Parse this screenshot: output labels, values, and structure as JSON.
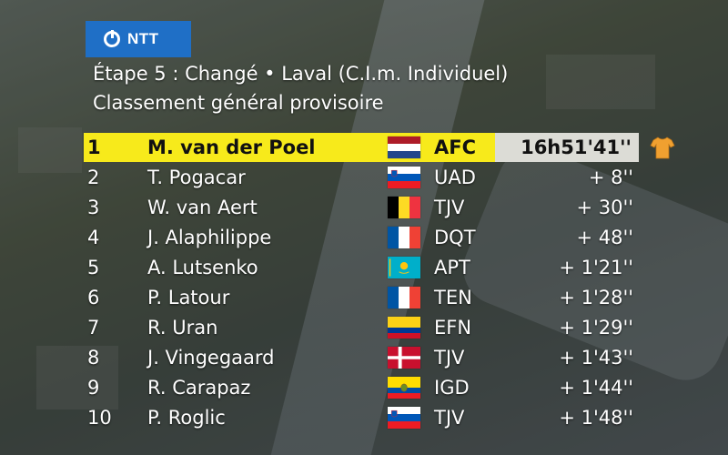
{
  "broadcaster": {
    "logo_text": "NTT"
  },
  "header": {
    "title": "Étape 5 : Changé • Laval (C.I.m. Individuel)",
    "subtitle": "Classement général provisoire"
  },
  "leader_jersey_color": "#f0a030",
  "standings": [
    {
      "pos": "1",
      "name": "M. van der Poel",
      "flag": "netherlands",
      "team": "AFC",
      "time": "16h51'41''"
    },
    {
      "pos": "2",
      "name": "T. Pogacar",
      "flag": "slovenia",
      "team": "UAD",
      "time": "+ 8''"
    },
    {
      "pos": "3",
      "name": "W. van Aert",
      "flag": "belgium",
      "team": "TJV",
      "time": "+ 30''"
    },
    {
      "pos": "4",
      "name": "J. Alaphilippe",
      "flag": "france",
      "team": "DQT",
      "time": "+ 48''"
    },
    {
      "pos": "5",
      "name": "A. Lutsenko",
      "flag": "kazakhstan",
      "team": "APT",
      "time": "+ 1'21''"
    },
    {
      "pos": "6",
      "name": "P. Latour",
      "flag": "france",
      "team": "TEN",
      "time": "+ 1'28''"
    },
    {
      "pos": "7",
      "name": "R. Uran",
      "flag": "colombia",
      "team": "EFN",
      "time": "+ 1'29''"
    },
    {
      "pos": "8",
      "name": "J. Vingegaard",
      "flag": "denmark",
      "team": "TJV",
      "time": "+ 1'43''"
    },
    {
      "pos": "9",
      "name": "R. Carapaz",
      "flag": "ecuador",
      "team": "IGD",
      "time": "+ 1'44''"
    },
    {
      "pos": "10",
      "name": "P. Roglic",
      "flag": "slovenia",
      "team": "TJV",
      "time": "+ 1'48''"
    }
  ]
}
